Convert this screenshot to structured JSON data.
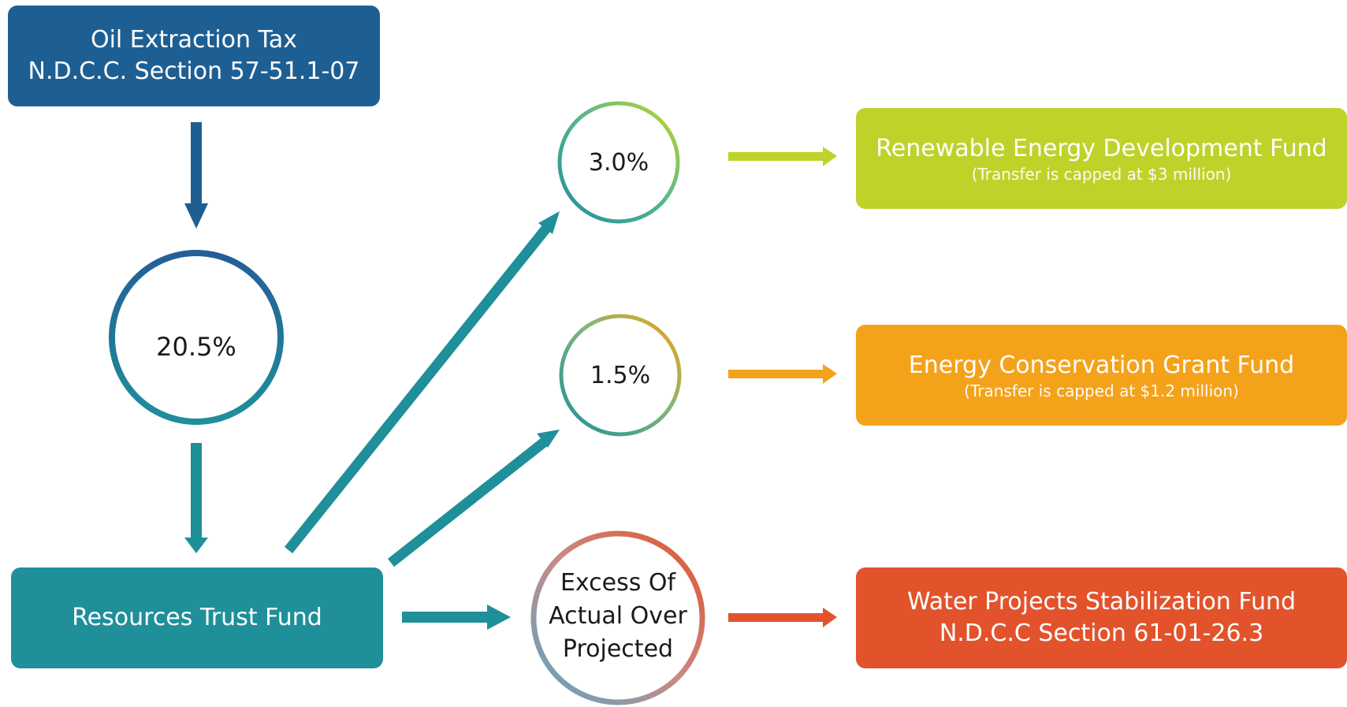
{
  "source": {
    "line1": "Oil Extraction Tax",
    "line2": "N.D.C.C. Section 57-51.1-07"
  },
  "first_split": {
    "percent": "20.5%"
  },
  "trust_fund": {
    "label": "Resources Trust Fund"
  },
  "branches": [
    {
      "percent": "3.0%",
      "fund": "Renewable Energy Development Fund",
      "note": "(Transfer is capped at $3 million)",
      "color": "#bfd22a"
    },
    {
      "percent": "1.5%",
      "fund": "Energy Conservation Grant Fund",
      "note": "(Transfer is capped at $1.2 million)",
      "color": "#f5a21b"
    },
    {
      "percent_lines": [
        "Excess Of",
        "Actual Over",
        "Projected"
      ],
      "fund": "Water Projects Stabilization Fund",
      "note": "N.D.C.C Section 61-01-26.3",
      "color": "#e2532c"
    }
  ],
  "colors": {
    "navy": "#1e5f93",
    "teal": "#1f8f9a",
    "lime": "#bfd22a",
    "orange": "#f5a21b",
    "red": "#e2532c"
  }
}
